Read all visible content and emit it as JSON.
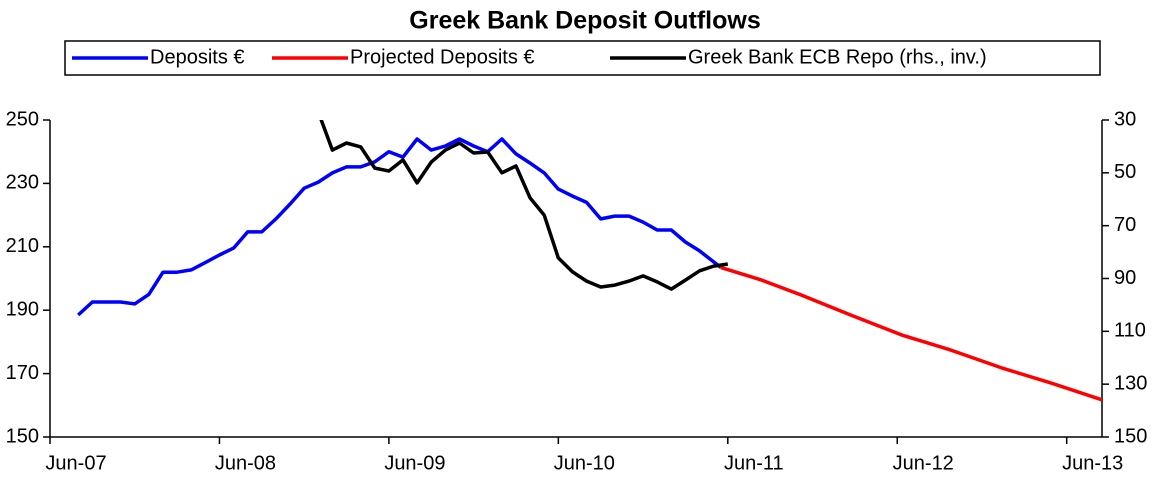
{
  "chart_data": {
    "type": "line",
    "title": "Greek Bank Deposit Outflows",
    "xlim": [
      0,
      74.5
    ],
    "xticks": [
      {
        "value": 0,
        "label": "Jun-07"
      },
      {
        "value": 12,
        "label": "Jun-08"
      },
      {
        "value": 24,
        "label": "Jun-09"
      },
      {
        "value": 36,
        "label": "Jun-10"
      },
      {
        "value": 48,
        "label": "Jun-11"
      },
      {
        "value": 60,
        "label": "Jun-12"
      },
      {
        "value": 72,
        "label": "Jun-13"
      }
    ],
    "ylim": [
      150,
      250
    ],
    "yticks": [
      150,
      170,
      190,
      210,
      230,
      250
    ],
    "y2lim": [
      150,
      30
    ],
    "y2ticks": [
      30,
      50,
      70,
      90,
      110,
      130,
      150
    ],
    "y2_inverted": true,
    "legend": "top",
    "series": [
      {
        "name": "Deposits €",
        "color": "#0000ff",
        "x": [
          2,
          3,
          4,
          5,
          6,
          7,
          8,
          9,
          10,
          11,
          12,
          13,
          14,
          15,
          16,
          17,
          18,
          19,
          20,
          21,
          22,
          23,
          24,
          25,
          26,
          27,
          28,
          29,
          30,
          31,
          32,
          33,
          34,
          35,
          36,
          37,
          38,
          39,
          40,
          41,
          42,
          43,
          44,
          45,
          46,
          47.5
        ],
        "values": [
          188.5,
          192.6,
          192.6,
          192.6,
          192,
          195,
          202,
          202,
          202.7,
          205,
          207.4,
          209.6,
          214.7,
          214.7,
          218.8,
          223.5,
          228.5,
          230.4,
          233.3,
          235.2,
          235.2,
          236.8,
          240,
          238.3,
          244,
          240.5,
          241.8,
          244,
          241.8,
          240,
          244,
          239.3,
          236.4,
          233.3,
          228.2,
          226,
          224,
          218.8,
          219.7,
          219.7,
          217.8,
          215.3,
          215.3,
          211.5,
          208.7,
          203.5
        ]
      },
      {
        "name": "Projected Deposits €",
        "color": "#ff0000",
        "x": [
          47.5,
          50.4,
          53.2,
          56.7,
          60.3,
          63.8,
          67.4,
          70.9,
          74.5
        ],
        "values": [
          203.5,
          199.5,
          194.8,
          188.5,
          182.2,
          177.4,
          171.8,
          167,
          161.7
        ]
      },
      {
        "name": "Greek Bank ECB Repo (rhs., inv.)",
        "color": "#000000",
        "axis": "y2",
        "x": [
          19,
          20,
          21,
          22,
          23,
          24,
          25,
          26,
          27,
          28,
          29,
          30,
          31,
          32,
          33,
          34,
          35,
          36,
          37,
          38,
          39,
          40,
          41,
          42,
          43,
          44,
          45,
          46,
          47,
          48
        ],
        "values": [
          27,
          41.4,
          38.7,
          40.2,
          48.2,
          49.3,
          45.1,
          53.8,
          45.9,
          41.4,
          38.7,
          42.5,
          42.1,
          50,
          47.4,
          59.5,
          66,
          82.2,
          87.5,
          91,
          93.2,
          92.5,
          91,
          89,
          91.3,
          94,
          90.6,
          87.1,
          85.3,
          84.5
        ]
      }
    ]
  }
}
